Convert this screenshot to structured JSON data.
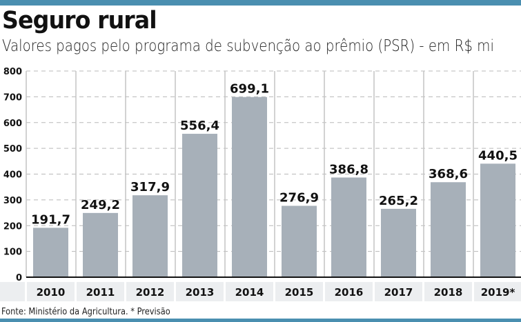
{
  "header": {
    "title": "Seguro rural",
    "subtitle": "Valores pagos pelo programa de subvenção ao prêmio (PSR) - em R$ mi"
  },
  "footer": {
    "source": "Fonte: Ministério da Agricultura. * Previsão"
  },
  "colors": {
    "accent": "#4a8fb0",
    "bar": "#a7b0b9",
    "label_band": "#eceef0"
  },
  "chart_data": {
    "type": "bar",
    "title": "Seguro rural",
    "subtitle": "Valores pagos pelo programa de subvenção ao prêmio (PSR) - em R$ mi",
    "categories": [
      "2010",
      "2011",
      "2012",
      "2013",
      "2014",
      "2015",
      "2016",
      "2017",
      "2018",
      "2019*"
    ],
    "values": [
      191.7,
      249.2,
      317.9,
      556.4,
      699.1,
      276.9,
      386.8,
      265.2,
      368.6,
      440.5
    ],
    "data_labels": [
      "191,7",
      "249,2",
      "317,9",
      "556,4",
      "699,1",
      "276,9",
      "386,8",
      "265,2",
      "368,6",
      "440,5"
    ],
    "yticks": [
      0,
      100,
      200,
      300,
      400,
      500,
      600,
      700,
      800
    ],
    "ylim": [
      0,
      800
    ],
    "grid": true,
    "xlabel": "",
    "ylabel": ""
  }
}
